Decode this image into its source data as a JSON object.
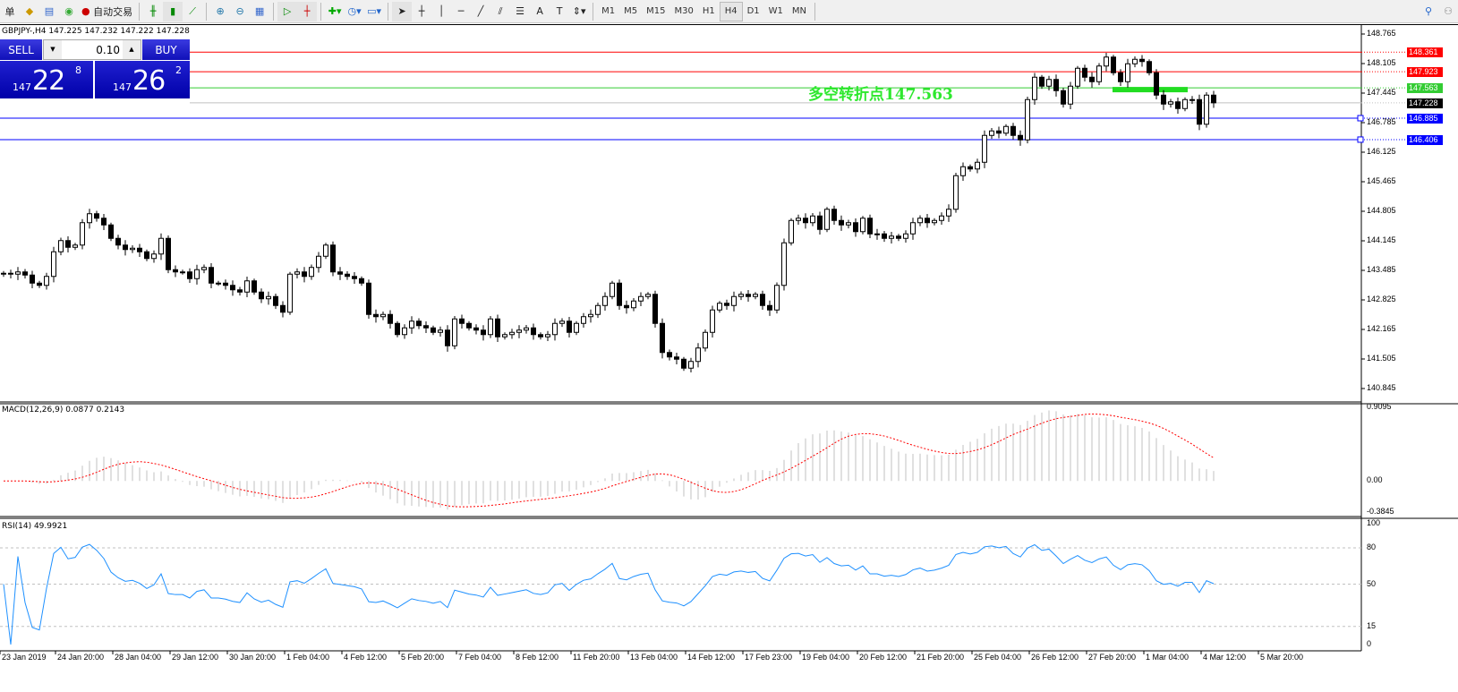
{
  "toolbar": {
    "cut_label": "单",
    "autotrade_label": "自动交易",
    "timeframes": [
      "M1",
      "M5",
      "M15",
      "M30",
      "H1",
      "H4",
      "D1",
      "W1",
      "MN"
    ],
    "active_timeframe": "H4",
    "icons": [
      "new-order-icon",
      "market-watch-icon",
      "signals-icon",
      "autotrade-icon",
      "bar-chart-icon",
      "candlestick-icon",
      "line-chart-icon",
      "zoom-in-icon",
      "zoom-out-icon",
      "tile-windows-icon",
      "auto-scroll-icon",
      "chart-shift-icon",
      "indicators-icon",
      "periods-icon",
      "templates-icon",
      "cursor-icon",
      "crosshair-icon",
      "vertical-line-icon",
      "horizontal-line-icon",
      "trendline-icon",
      "fibonacci-icon",
      "fibo-fan-icon",
      "text-icon",
      "label-icon",
      "arrows-icon",
      "search-icon",
      "community-icon"
    ]
  },
  "chart": {
    "symbol_line": "GBPJPY-,H4  147.225 147.232 147.222 147.228",
    "trade_panel": {
      "sell_label": "SELL",
      "buy_label": "BUY",
      "lot": "0.10",
      "sell_price": {
        "big": "147",
        "main": "22",
        "pip": "8"
      },
      "buy_price": {
        "big": "147",
        "main": "26",
        "pip": "2"
      }
    },
    "pivot_text": "多空转折点147.563",
    "levels": [
      {
        "price": "148.361",
        "color": "#ff0000"
      },
      {
        "price": "147.923",
        "color": "#ff0000"
      },
      {
        "price": "147.563",
        "color": "#33cc33"
      },
      {
        "price": "147.228",
        "color": "#000000",
        "line": "#c0c0c0"
      },
      {
        "price": "146.885",
        "color": "#0000ff"
      },
      {
        "price": "146.406",
        "color": "#0000ff"
      }
    ],
    "price_ticks": [
      "148.765",
      "148.105",
      "147.445",
      "146.785",
      "146.125",
      "145.465",
      "144.805",
      "144.145",
      "143.485",
      "142.825",
      "142.165",
      "141.505",
      "140.845"
    ],
    "time_labels": [
      "23 Jan 2019",
      "24 Jan 20:00",
      "28 Jan 04:00",
      "29 Jan 12:00",
      "30 Jan 20:00",
      "1 Feb 04:00",
      "4 Feb 12:00",
      "5 Feb 20:00",
      "7 Feb 04:00",
      "8 Feb 12:00",
      "11 Feb 20:00",
      "13 Feb 04:00",
      "14 Feb 12:00",
      "17 Feb 23:00",
      "19 Feb 04:00",
      "20 Feb 12:00",
      "21 Feb 20:00",
      "25 Feb 04:00",
      "26 Feb 12:00",
      "27 Feb 20:00",
      "1 Mar 04:00",
      "4 Mar 12:00",
      "5 Mar 20:00"
    ]
  },
  "macd": {
    "label": "MACD(12,26,9) 0.0877 0.2143",
    "ticks": [
      "0.9095",
      "0.00",
      "-0.3845"
    ],
    "hist_color": "#c0c0c0",
    "signal_color": "#ff0000"
  },
  "rsi": {
    "label": "RSI(14) 49.9921",
    "ticks": [
      "100",
      "80",
      "50",
      "15",
      "0"
    ],
    "line_color": "#1e90ff"
  },
  "chart_data": {
    "type": "candlestick",
    "symbol": "GBPJPY",
    "timeframe": "H4",
    "ylim": [
      140.545,
      148.965
    ],
    "close": [
      143.42,
      143.4,
      143.45,
      143.38,
      143.2,
      143.15,
      143.35,
      143.9,
      144.15,
      144.0,
      144.05,
      144.55,
      144.75,
      144.65,
      144.5,
      144.2,
      144.05,
      143.95,
      143.98,
      143.9,
      143.75,
      143.85,
      144.2,
      143.5,
      143.45,
      143.45,
      143.3,
      143.5,
      143.55,
      143.2,
      143.2,
      143.15,
      143.05,
      143.0,
      143.25,
      143.0,
      142.85,
      142.9,
      142.7,
      142.55,
      143.4,
      143.45,
      143.35,
      143.55,
      143.8,
      144.05,
      143.45,
      143.4,
      143.35,
      143.3,
      143.2,
      142.5,
      142.45,
      142.5,
      142.3,
      142.05,
      142.2,
      142.35,
      142.25,
      142.2,
      142.1,
      142.15,
      141.8,
      142.4,
      142.3,
      142.2,
      142.15,
      142.05,
      142.4,
      142.0,
      142.05,
      142.1,
      142.15,
      142.2,
      142.05,
      142.0,
      142.05,
      142.3,
      142.35,
      142.1,
      142.3,
      142.45,
      142.5,
      142.7,
      142.9,
      143.2,
      142.7,
      142.65,
      142.8,
      142.9,
      142.95,
      142.3,
      141.65,
      141.55,
      141.5,
      141.3,
      141.45,
      141.75,
      142.1,
      142.6,
      142.75,
      142.7,
      142.9,
      142.95,
      142.9,
      142.95,
      142.7,
      142.6,
      143.15,
      144.1,
      144.6,
      144.65,
      144.55,
      144.7,
      144.4,
      144.85,
      144.6,
      144.5,
      144.55,
      144.35,
      144.65,
      144.3,
      144.3,
      144.2,
      144.25,
      144.2,
      144.3,
      144.55,
      144.65,
      144.55,
      144.6,
      144.7,
      144.85,
      145.6,
      145.8,
      145.75,
      145.9,
      146.5,
      146.6,
      146.55,
      146.7,
      146.5,
      146.4,
      147.3,
      147.8,
      147.6,
      147.75,
      147.5,
      147.2,
      147.6,
      148.0,
      147.8,
      147.7,
      148.05,
      148.25,
      147.9,
      147.7,
      148.1,
      148.2,
      148.15,
      147.9,
      147.4,
      147.2,
      147.25,
      147.1,
      147.3,
      147.3,
      146.75,
      147.4,
      147.228
    ],
    "macd_ylim": [
      -0.3845,
      0.9095
    ],
    "rsi_ylim": [
      0,
      100
    ],
    "rsi_levels": [
      80,
      50,
      15
    ]
  }
}
